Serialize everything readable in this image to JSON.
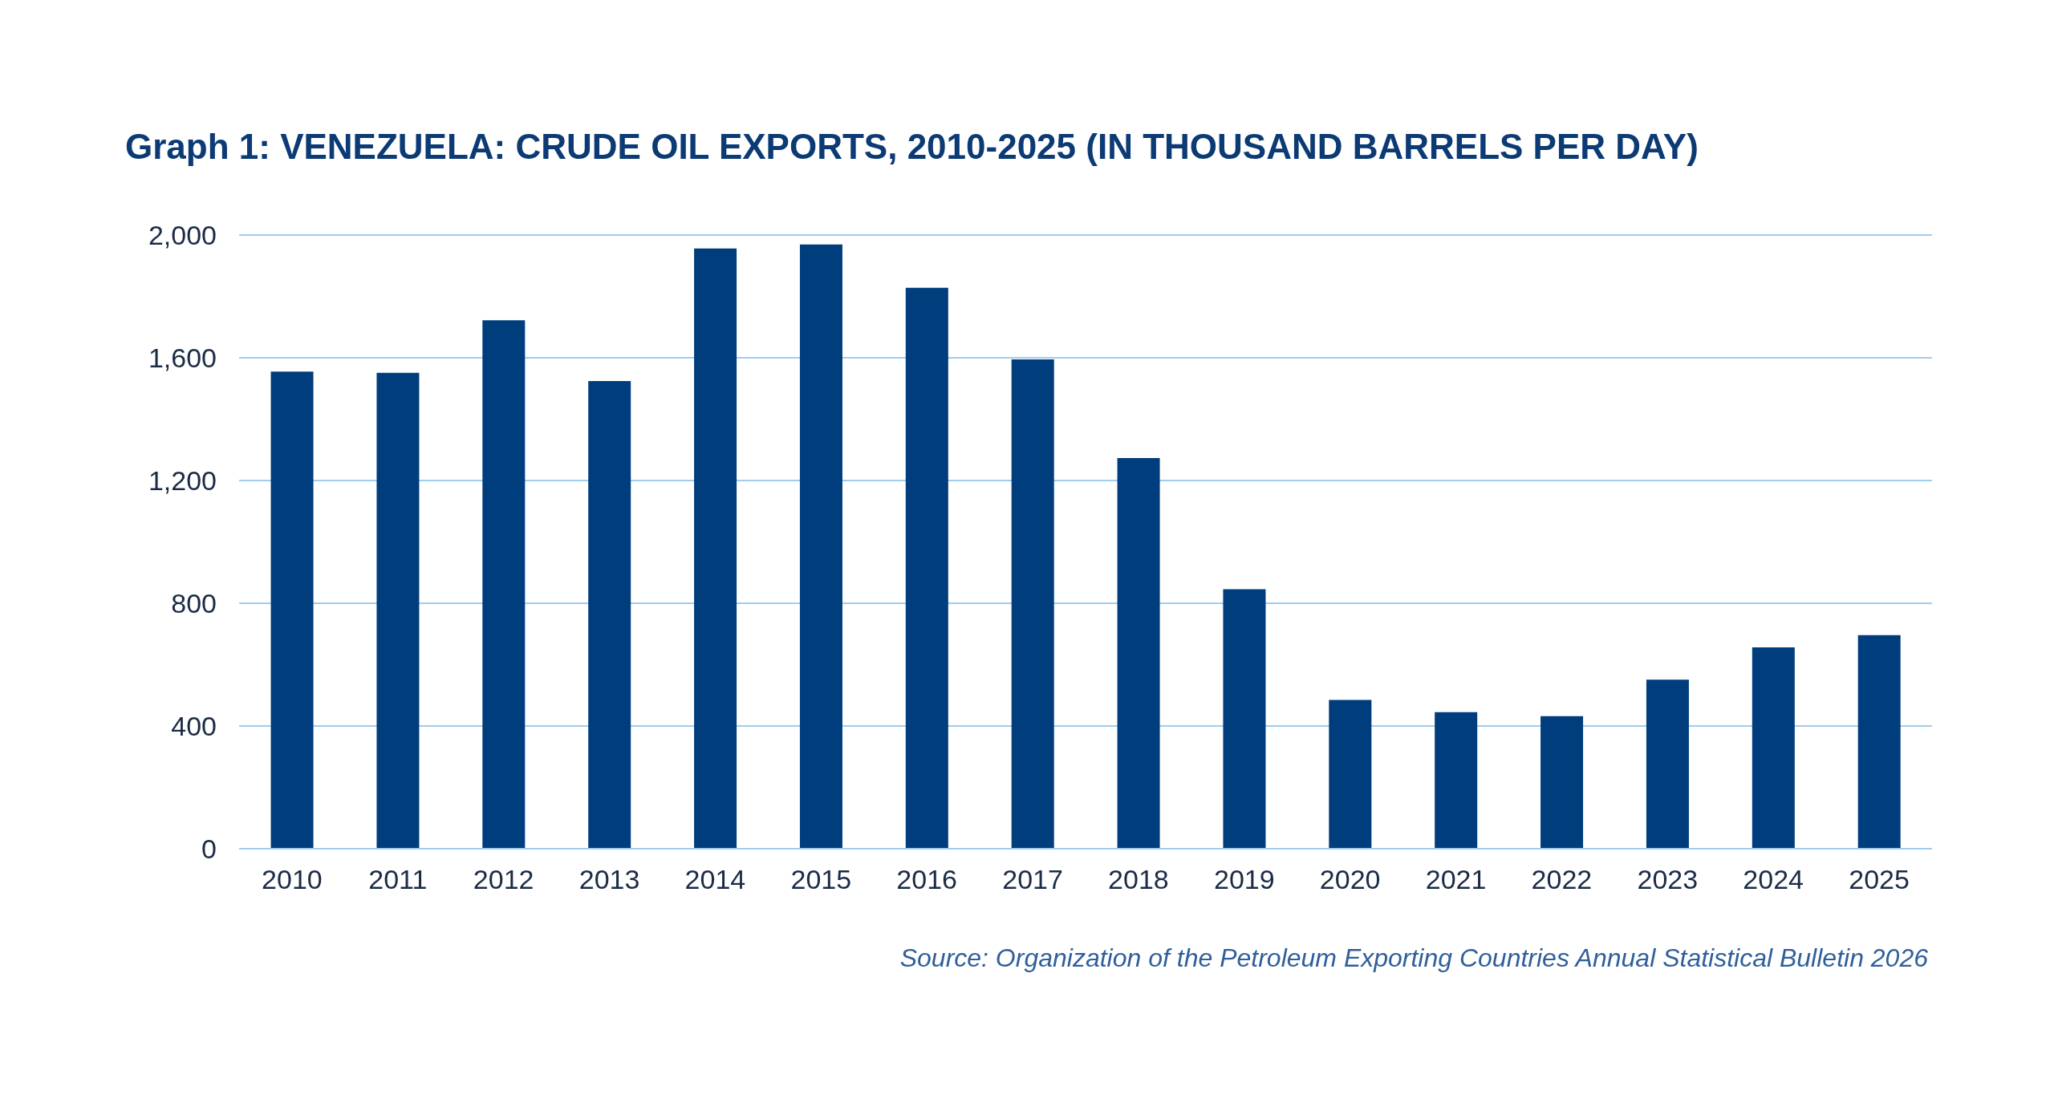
{
  "chart_data": {
    "type": "bar",
    "title": "Graph 1: VENEZUELA: CRUDE OIL EXPORTS, 2010-2025 (IN THOUSAND BARRELS PER DAY)",
    "categories": [
      "2010",
      "2011",
      "2012",
      "2013",
      "2014",
      "2015",
      "2016",
      "2017",
      "2018",
      "2019",
      "2020",
      "2021",
      "2022",
      "2023",
      "2024",
      "2025"
    ],
    "values": [
      1555,
      1551,
      1722,
      1524,
      1956,
      1969,
      1828,
      1595,
      1273,
      846,
      485,
      445,
      432,
      551,
      656,
      696
    ],
    "color": "#003d7c",
    "ylim": [
      0,
      2000
    ],
    "yticks": [
      0,
      400,
      800,
      {
        "value": 1200,
        "label": "1,200"
      },
      {
        "value": 1600,
        "label": "1,600"
      },
      {
        "value": 2000,
        "label": "2,000"
      }
    ],
    "grid": "y",
    "annotations": [
      "Source: Organization of the Petroleum Exporting Countries Annual Statistical Bulletin 2026"
    ]
  }
}
